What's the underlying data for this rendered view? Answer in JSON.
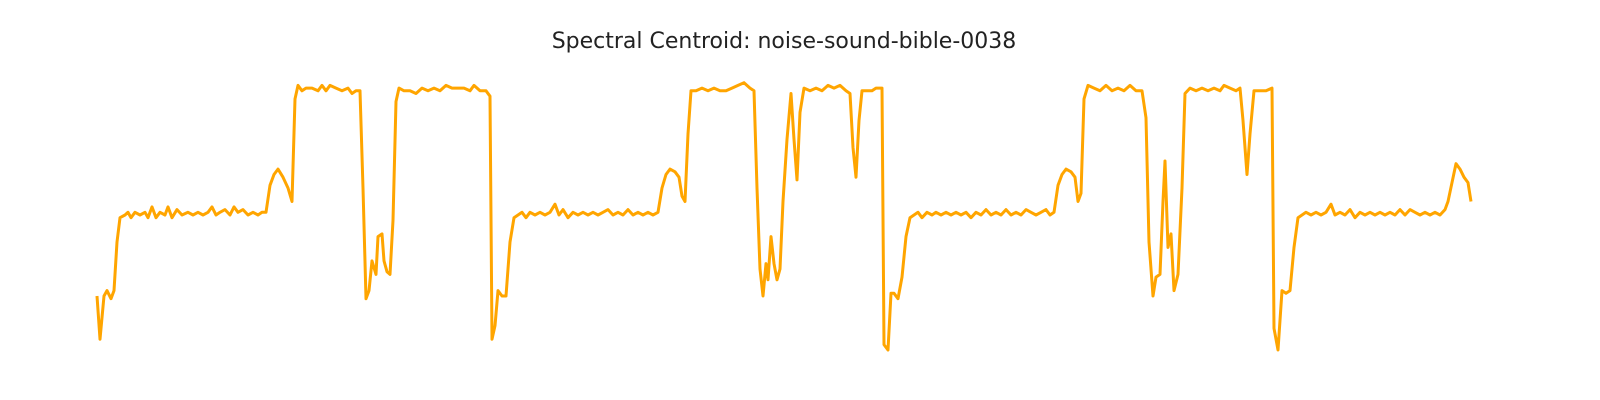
{
  "chart_data": {
    "type": "line",
    "title": "Spectral Centroid: noise-sound-bible-0038",
    "xlim": [
      97,
      1471
    ],
    "ylim": [
      0,
      100
    ],
    "x": [
      97,
      100,
      104,
      107,
      111,
      114,
      117,
      120,
      125,
      128,
      131,
      135,
      140,
      145,
      148,
      152,
      156,
      160,
      165,
      168,
      172,
      177,
      182,
      188,
      193,
      198,
      203,
      208,
      212,
      216,
      220,
      225,
      230,
      234,
      238,
      243,
      248,
      253,
      258,
      262,
      266,
      270,
      274,
      278,
      283,
      288,
      292,
      295,
      298,
      302,
      306,
      312,
      318,
      322,
      326,
      330,
      336,
      342,
      348,
      352,
      356,
      360,
      363,
      366,
      369,
      372,
      376,
      378,
      382,
      384,
      387,
      390,
      393,
      396,
      399,
      404,
      410,
      416,
      422,
      428,
      434,
      440,
      446,
      452,
      458,
      464,
      470,
      474,
      480,
      486,
      490,
      492,
      495,
      498,
      502,
      506,
      510,
      514,
      518,
      522,
      526,
      530,
      535,
      540,
      545,
      550,
      555,
      559,
      563,
      568,
      573,
      578,
      583,
      588,
      593,
      598,
      603,
      608,
      613,
      618,
      623,
      628,
      633,
      638,
      643,
      648,
      653,
      658,
      662,
      666,
      670,
      675,
      679,
      682,
      685,
      688,
      691,
      696,
      702,
      708,
      714,
      720,
      726,
      732,
      738,
      744,
      750,
      754,
      757,
      760,
      763,
      766,
      768,
      771,
      774,
      777,
      780,
      783,
      787,
      791,
      794,
      797,
      800,
      804,
      810,
      816,
      822,
      828,
      834,
      840,
      846,
      850,
      853,
      856,
      859,
      862,
      866,
      872,
      876,
      882,
      884,
      888,
      891,
      894,
      898,
      902,
      906,
      910,
      914,
      918,
      922,
      927,
      932,
      936,
      941,
      946,
      951,
      956,
      961,
      966,
      971,
      976,
      981,
      986,
      991,
      996,
      1001,
      1006,
      1011,
      1016,
      1021,
      1026,
      1031,
      1036,
      1041,
      1046,
      1050,
      1054,
      1058,
      1062,
      1066,
      1071,
      1075,
      1078,
      1081,
      1084,
      1088,
      1094,
      1100,
      1106,
      1112,
      1118,
      1124,
      1130,
      1136,
      1142,
      1146,
      1149,
      1153,
      1156,
      1160,
      1163,
      1165,
      1168,
      1171,
      1174,
      1178,
      1182,
      1185,
      1190,
      1196,
      1202,
      1208,
      1214,
      1220,
      1224,
      1230,
      1236,
      1240,
      1243,
      1247,
      1250,
      1254,
      1260,
      1266,
      1272,
      1274,
      1278,
      1282,
      1286,
      1290,
      1294,
      1298,
      1302,
      1306,
      1311,
      1316,
      1321,
      1326,
      1331,
      1335,
      1340,
      1345,
      1350,
      1355,
      1360,
      1365,
      1370,
      1375,
      1380,
      1385,
      1390,
      1395,
      1400,
      1405,
      1410,
      1415,
      1420,
      1425,
      1430,
      1435,
      1440,
      1445,
      1448,
      1452,
      1456,
      1460,
      1464,
      1468,
      1471
    ],
    "series": [
      {
        "color": "#ffa500",
        "values": [
          20,
          4,
          20,
          22,
          19,
          22,
          40,
          49,
          50,
          51,
          49,
          51,
          50,
          51,
          49,
          53,
          49,
          51,
          50,
          53,
          49,
          52,
          50,
          51,
          50,
          51,
          50,
          51,
          53,
          50,
          51,
          52,
          50,
          53,
          51,
          52,
          50,
          51,
          50,
          51,
          51,
          61,
          65,
          67,
          64,
          60,
          55,
          93,
          98,
          96,
          97,
          97,
          96,
          98,
          96,
          98,
          97,
          96,
          97,
          95,
          96,
          96,
          60,
          19,
          22,
          33,
          28,
          42,
          43,
          33,
          29,
          28,
          48,
          92,
          97,
          96,
          96,
          95,
          97,
          96,
          97,
          96,
          98,
          97,
          97,
          97,
          96,
          98,
          96,
          96,
          94,
          4,
          9,
          22,
          20,
          20,
          40,
          49,
          50,
          51,
          49,
          51,
          50,
          51,
          50,
          51,
          54,
          50,
          52,
          49,
          51,
          50,
          51,
          50,
          51,
          50,
          51,
          52,
          50,
          51,
          50,
          52,
          50,
          51,
          50,
          51,
          50,
          51,
          60,
          65,
          67,
          66,
          64,
          57,
          55,
          80,
          96,
          96,
          97,
          96,
          97,
          96,
          96,
          97,
          98,
          99,
          97,
          96,
          60,
          30,
          20,
          32,
          26,
          42,
          32,
          26,
          30,
          55,
          78,
          95,
          78,
          63,
          88,
          97,
          96,
          97,
          96,
          98,
          97,
          98,
          96,
          95,
          75,
          64,
          85,
          96,
          96,
          96,
          97,
          97,
          2,
          0,
          21,
          21,
          19,
          27,
          42,
          49,
          50,
          51,
          49,
          51,
          50,
          51,
          50,
          51,
          50,
          51,
          50,
          51,
          49,
          51,
          50,
          52,
          50,
          51,
          50,
          52,
          50,
          51,
          50,
          52,
          51,
          50,
          51,
          52,
          50,
          51,
          61,
          65,
          67,
          66,
          64,
          55,
          58,
          93,
          98,
          97,
          96,
          98,
          96,
          97,
          96,
          98,
          96,
          96,
          86,
          40,
          20,
          27,
          28,
          55,
          70,
          38,
          43,
          22,
          28,
          60,
          95,
          97,
          96,
          97,
          96,
          97,
          96,
          98,
          97,
          96,
          97,
          85,
          65,
          80,
          96,
          96,
          96,
          97,
          8,
          0,
          22,
          21,
          22,
          38,
          49,
          50,
          51,
          50,
          51,
          50,
          51,
          54,
          50,
          51,
          50,
          52,
          49,
          51,
          50,
          51,
          50,
          51,
          50,
          51,
          50,
          52,
          50,
          52,
          51,
          50,
          51,
          50,
          51,
          50,
          52,
          55,
          62,
          69,
          67,
          64,
          62,
          55
        ]
      }
    ]
  }
}
